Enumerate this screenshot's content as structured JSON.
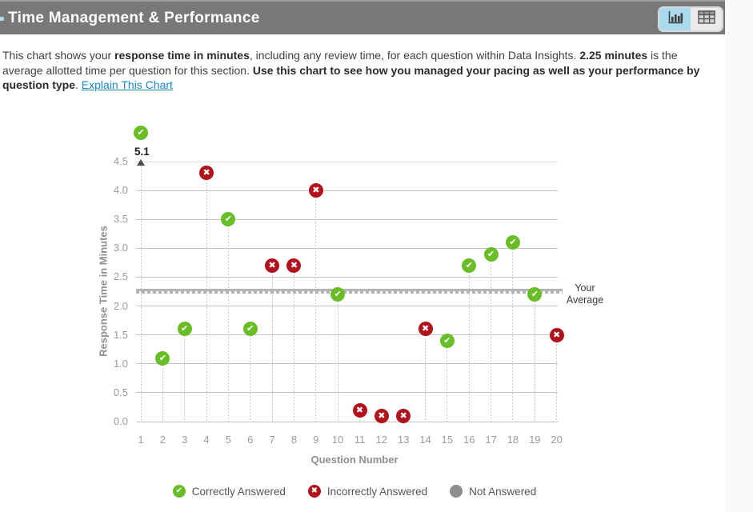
{
  "header": {
    "title": "Time Management & Performance",
    "view_toggle": {
      "active_view": "chart",
      "chart_button": "chart-view",
      "table_button": "table-view"
    }
  },
  "description": {
    "segments": [
      {
        "text": "This chart shows your ",
        "style": "normal"
      },
      {
        "text": "response time in minutes",
        "style": "bold"
      },
      {
        "text": ", including any review time, for each question within Data Insights. ",
        "style": "normal"
      },
      {
        "text": "2.25 minutes",
        "style": "bold"
      },
      {
        "text": " is the average allotted time per question for this section. ",
        "style": "normal"
      },
      {
        "text": "Use this chart to see how you managed your pacing as well as your performance by question type",
        "style": "bold"
      },
      {
        "text": ". ",
        "style": "normal"
      },
      {
        "text": "Explain This Chart",
        "style": "link"
      }
    ]
  },
  "chart_data": {
    "type": "scatter",
    "xlabel": "Question Number",
    "ylabel": "Response Time in Minutes",
    "ylim": [
      0,
      4.5
    ],
    "ytick_step": 0.5,
    "yticks": [
      "0.0",
      "0.5",
      "1.0",
      "1.5",
      "2.0",
      "2.5",
      "3.0",
      "3.5",
      "4.0",
      "4.5"
    ],
    "xticks": [
      "1",
      "2",
      "3",
      "4",
      "5",
      "6",
      "7",
      "8",
      "9",
      "10",
      "11",
      "12",
      "13",
      "14",
      "15",
      "16",
      "17",
      "18",
      "19",
      "20"
    ],
    "grid": true,
    "average": {
      "value": 2.25,
      "label": "Your Average"
    },
    "points": [
      {
        "q": 1,
        "minutes": 5.1,
        "status": "correct"
      },
      {
        "q": 2,
        "minutes": 1.1,
        "status": "correct"
      },
      {
        "q": 3,
        "minutes": 1.6,
        "status": "correct"
      },
      {
        "q": 4,
        "minutes": 4.3,
        "status": "incorrect"
      },
      {
        "q": 5,
        "minutes": 3.5,
        "status": "correct"
      },
      {
        "q": 6,
        "minutes": 1.6,
        "status": "correct"
      },
      {
        "q": 7,
        "minutes": 2.7,
        "status": "incorrect"
      },
      {
        "q": 8,
        "minutes": 2.7,
        "status": "incorrect"
      },
      {
        "q": 9,
        "minutes": 4.0,
        "status": "incorrect"
      },
      {
        "q": 10,
        "minutes": 2.2,
        "status": "correct"
      },
      {
        "q": 11,
        "minutes": 0.2,
        "status": "incorrect"
      },
      {
        "q": 12,
        "minutes": 0.1,
        "status": "incorrect"
      },
      {
        "q": 13,
        "minutes": 0.1,
        "status": "incorrect"
      },
      {
        "q": 14,
        "minutes": 1.6,
        "status": "incorrect"
      },
      {
        "q": 15,
        "minutes": 1.4,
        "status": "correct"
      },
      {
        "q": 16,
        "minutes": 2.7,
        "status": "correct"
      },
      {
        "q": 17,
        "minutes": 2.9,
        "status": "correct"
      },
      {
        "q": 18,
        "minutes": 3.1,
        "status": "correct"
      },
      {
        "q": 19,
        "minutes": 2.2,
        "status": "correct"
      },
      {
        "q": 20,
        "minutes": 1.5,
        "status": "incorrect"
      }
    ],
    "offscale_label": "5.1",
    "legend": [
      {
        "label": "Correctly Answered",
        "status": "correct"
      },
      {
        "label": "Incorrectly Answered",
        "status": "incorrect"
      },
      {
        "label": "Not Answered",
        "status": "not_answered"
      }
    ]
  },
  "colors": {
    "correct": "#69be28",
    "incorrect": "#b2121b",
    "not_answered": "#8d8d8d",
    "header_bg": "#787878",
    "active_toggle": "#a9daee",
    "link": "#1a87c8"
  }
}
